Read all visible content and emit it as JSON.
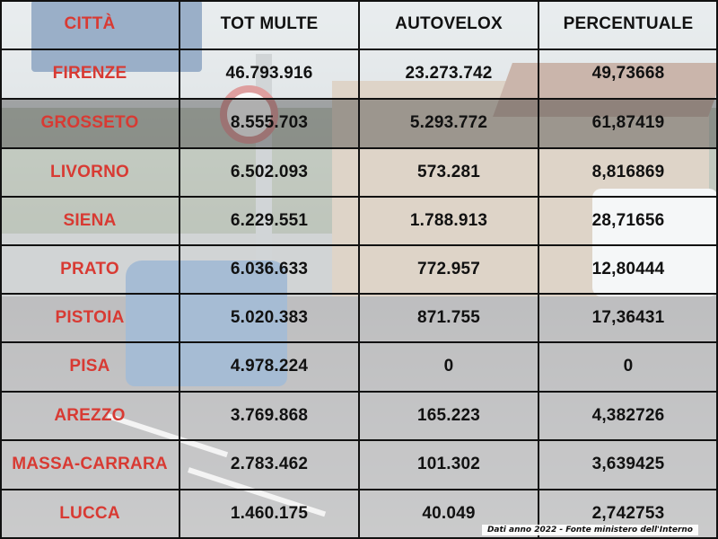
{
  "table": {
    "headers": [
      "CITTÀ",
      "TOT MULTE",
      "AUTOVELOX",
      "PERCENTUALE"
    ],
    "rows": [
      [
        "FIRENZE",
        "46.793.916",
        "23.273.742",
        "49,73668"
      ],
      [
        "GROSSETO",
        "8.555.703",
        "5.293.772",
        "61,87419"
      ],
      [
        "LIVORNO",
        "6.502.093",
        "573.281",
        "8,816869"
      ],
      [
        "SIENA",
        "6.229.551",
        "1.788.913",
        "28,71656"
      ],
      [
        "PRATO",
        "6.036.633",
        "772.957",
        "12,80444"
      ],
      [
        "PISTOIA",
        "5.020.383",
        "871.755",
        "17,36431"
      ],
      [
        "PISA",
        "4.978.224",
        "0",
        "0"
      ],
      [
        "AREZZO",
        "3.769.868",
        "165.223",
        "4,382726"
      ],
      [
        "MASSA-CARRARA",
        "2.783.462",
        "101.302",
        "3,639425"
      ],
      [
        "LUCCA",
        "1.460.175",
        "40.049",
        "2,742753"
      ]
    ],
    "highlighted_row": "GROSSETO"
  },
  "footnote": "Dati anno 2022 - Fonte ministero dell'Interno",
  "colors": {
    "city_text": "#d83a33",
    "grid": "#111111",
    "highlight_row": "#2a2a2a"
  }
}
